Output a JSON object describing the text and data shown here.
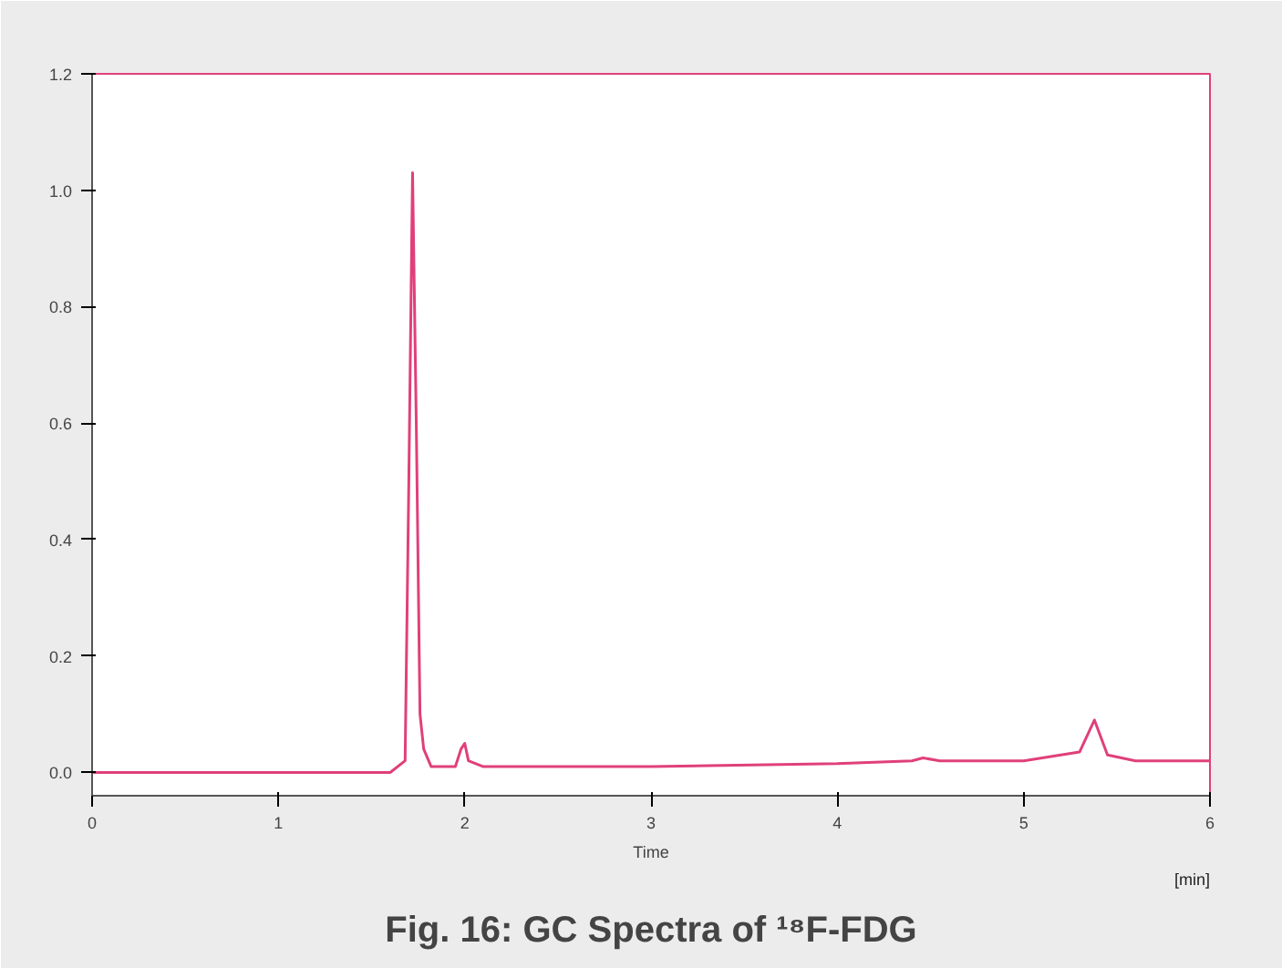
{
  "chart_data": {
    "type": "line",
    "title": "Fig. 16: GC Spectra of ¹⁸F-FDG",
    "xlabel": "Time",
    "annotations": [
      "[min]"
    ],
    "series": [
      {
        "color": "#e0407a",
        "x": [
          0,
          1.6,
          1.68,
          1.7,
          1.72,
          1.74,
          1.76,
          1.78,
          1.82,
          1.95,
          1.98,
          2.0,
          2.02,
          2.1,
          3.0,
          4.0,
          4.4,
          4.46,
          4.55,
          5.0,
          5.3,
          5.38,
          5.45,
          5.6,
          6.0
        ],
        "values": [
          0.0,
          0.0,
          0.02,
          0.5,
          1.03,
          0.6,
          0.1,
          0.04,
          0.01,
          0.01,
          0.04,
          0.05,
          0.02,
          0.01,
          0.01,
          0.015,
          0.02,
          0.025,
          0.02,
          0.02,
          0.035,
          0.09,
          0.03,
          0.02,
          0.02
        ]
      }
    ],
    "xlim": [
      0,
      6
    ],
    "xticks": [
      0,
      1,
      2,
      3,
      4,
      5,
      6
    ],
    "ylim": [
      -0.04,
      1.2
    ],
    "yticks": [
      {
        "value": 0,
        "label": "0.0"
      },
      0.2,
      0.4,
      0.6,
      0.8,
      {
        "value": 1,
        "label": "1.0"
      },
      1.2
    ],
    "grid": false
  }
}
